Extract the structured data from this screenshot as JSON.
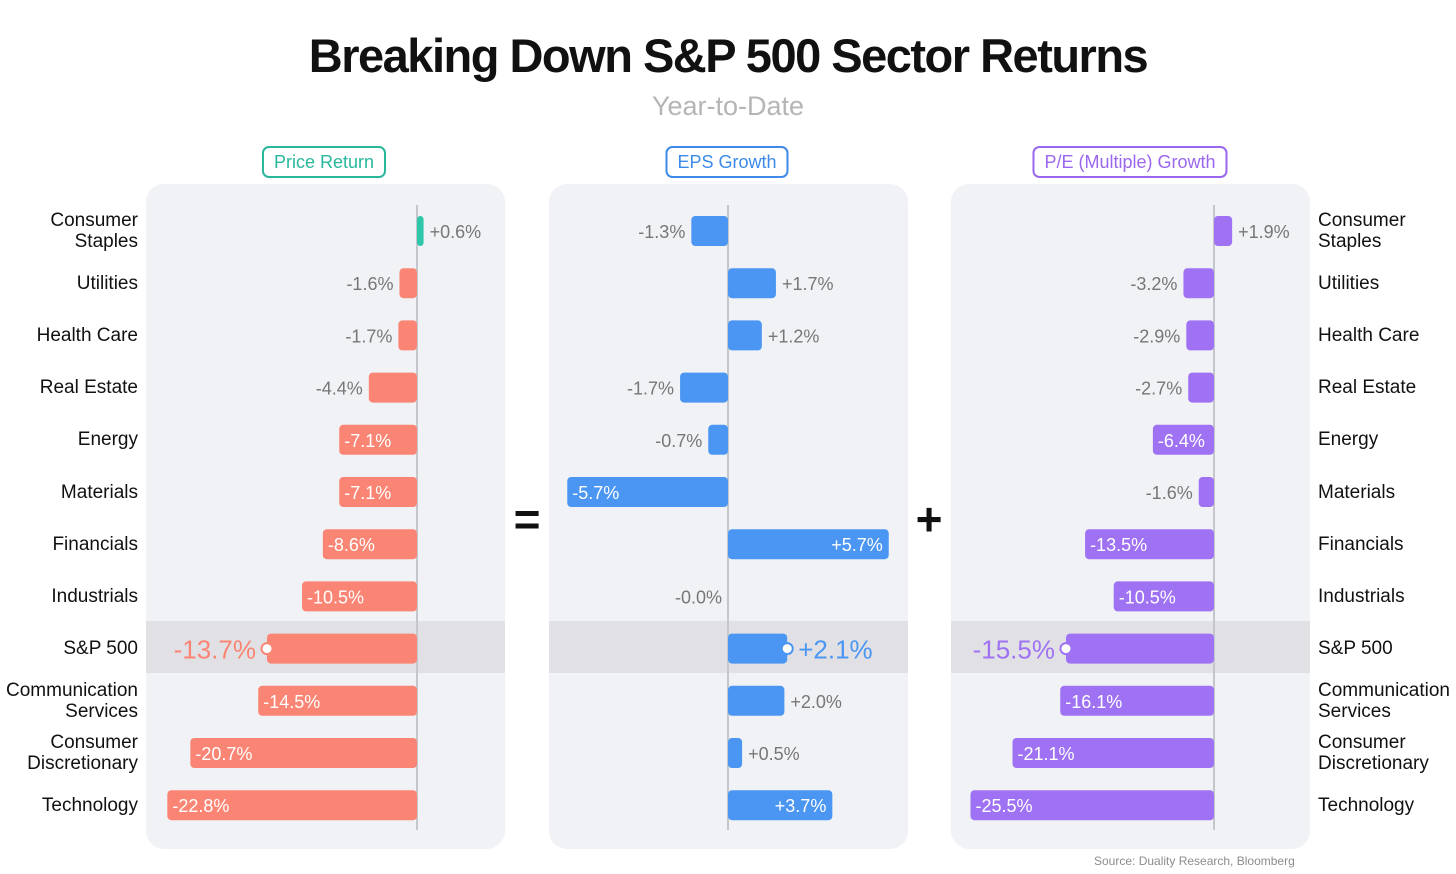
{
  "title": "Breaking Down S&P 500 Sector Returns",
  "subtitle": "Year-to-Date",
  "operators": {
    "equals": "=",
    "plus": "+"
  },
  "source": "Source: Duality Research, Bloomberg",
  "colors": {
    "price_negative": "#fa8574",
    "price_positive": "#2ec7a9",
    "eps": "#4b96f2",
    "pe": "#9f72f3",
    "price_pill": "#27b89c",
    "eps_pill": "#3d8ae8",
    "pe_pill": "#9a67ee"
  },
  "chart_data": [
    {
      "type": "bar",
      "orientation": "horizontal",
      "title": "Price Return",
      "categories": [
        "Consumer Staples",
        "Utilities",
        "Health Care",
        "Real Estate",
        "Energy",
        "Materials",
        "Financials",
        "Industrials",
        "S&P 500",
        "Communication Services",
        "Consumer Discretionary",
        "Technology"
      ],
      "values": [
        0.6,
        -1.6,
        -1.7,
        -4.4,
        -7.1,
        -7.1,
        -8.6,
        -10.5,
        -13.7,
        -14.5,
        -20.7,
        -22.8
      ],
      "labels": [
        "+0.6%",
        "-1.6%",
        "-1.7%",
        "-4.4%",
        "-7.1%",
        "-7.1%",
        "-8.6%",
        "-10.5%",
        "-13.7%",
        "-14.5%",
        "-20.7%",
        "-22.8%"
      ],
      "highlight": "S&P 500"
    },
    {
      "type": "bar",
      "orientation": "horizontal",
      "title": "EPS Growth",
      "categories": [
        "Consumer Staples",
        "Utilities",
        "Health Care",
        "Real Estate",
        "Energy",
        "Materials",
        "Financials",
        "Industrials",
        "S&P 500",
        "Communication Services",
        "Consumer Discretionary",
        "Technology"
      ],
      "values": [
        -1.3,
        1.7,
        1.2,
        -1.7,
        -0.7,
        -5.7,
        5.7,
        0.0,
        2.1,
        2.0,
        0.5,
        3.7
      ],
      "labels": [
        "-1.3%",
        "+1.7%",
        "+1.2%",
        "-1.7%",
        "-0.7%",
        "-5.7%",
        "+5.7%",
        "-0.0%",
        "+2.1%",
        "+2.0%",
        "+0.5%",
        "+3.7%"
      ],
      "highlight": "S&P 500"
    },
    {
      "type": "bar",
      "orientation": "horizontal",
      "title": "P/E (Multiple) Growth",
      "categories": [
        "Consumer Staples",
        "Utilities",
        "Health Care",
        "Real Estate",
        "Energy",
        "Materials",
        "Financials",
        "Industrials",
        "S&P 500",
        "Communication Services",
        "Consumer Discretionary",
        "Technology"
      ],
      "values": [
        1.9,
        -3.2,
        -2.9,
        -2.7,
        -6.4,
        -1.6,
        -13.5,
        -10.5,
        -15.5,
        -16.1,
        -21.1,
        -25.5
      ],
      "labels": [
        "+1.9%",
        "-3.2%",
        "-2.9%",
        "-2.7%",
        "-6.4%",
        "-1.6%",
        "-13.5%",
        "-10.5%",
        "-15.5%",
        "-16.1%",
        "-21.1%",
        "-25.5%"
      ],
      "highlight": "S&P 500"
    }
  ],
  "row_labels": [
    [
      "Consumer",
      "Staples"
    ],
    [
      "Utilities"
    ],
    [
      "Health Care"
    ],
    [
      "Real Estate"
    ],
    [
      "Energy"
    ],
    [
      "Materials"
    ],
    [
      "Financials"
    ],
    [
      "Industrials"
    ],
    [
      "S&P 500"
    ],
    [
      "Communication",
      "Services"
    ],
    [
      "Consumer",
      "Discretionary"
    ],
    [
      "Technology"
    ]
  ]
}
